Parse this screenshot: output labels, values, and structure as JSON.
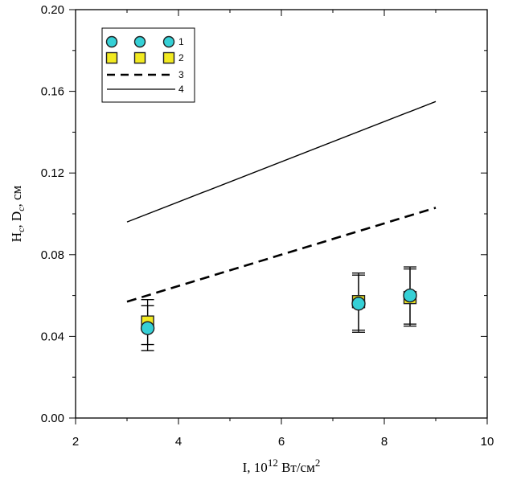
{
  "chart_data": {
    "type": "scatter",
    "title": "",
    "xlabel": {
      "base": "I, 10",
      "sup1": "12",
      "mid": " Вт/см",
      "sup2": "2"
    },
    "ylabel": {
      "h": "H",
      "hsub": "c",
      "sep": ", D",
      "dsub": "c",
      "unit": ", см"
    },
    "xlim": [
      2,
      10
    ],
    "ylim": [
      0.0,
      0.2
    ],
    "x_ticks": [
      "2",
      "4",
      "6",
      "8",
      "10"
    ],
    "y_ticks": [
      "0.00",
      "0.04",
      "0.08",
      "0.12",
      "0.16",
      "0.20"
    ],
    "grid": false,
    "legend_position": "top-left",
    "series": [
      {
        "name": "1",
        "kind": "markers",
        "marker": "circle",
        "color": "#35d0d6",
        "points": [
          {
            "x": 3.4,
            "y": 0.044,
            "err": 0.011
          },
          {
            "x": 7.5,
            "y": 0.056,
            "err": 0.014
          },
          {
            "x": 8.5,
            "y": 0.06,
            "err": 0.014
          }
        ]
      },
      {
        "name": "2",
        "kind": "markers",
        "marker": "square",
        "color": "#f2ea21",
        "points": [
          {
            "x": 3.4,
            "y": 0.047,
            "err": 0.011
          },
          {
            "x": 7.5,
            "y": 0.057,
            "err": 0.014
          },
          {
            "x": 8.5,
            "y": 0.059,
            "err": 0.014
          }
        ]
      },
      {
        "name": "3",
        "kind": "line",
        "style": "dashed",
        "color": "#000000",
        "points": [
          {
            "x": 3.0,
            "y": 0.057
          },
          {
            "x": 9.0,
            "y": 0.103
          }
        ]
      },
      {
        "name": "4",
        "kind": "line",
        "style": "solid",
        "color": "#000000",
        "points": [
          {
            "x": 3.0,
            "y": 0.096
          },
          {
            "x": 9.0,
            "y": 0.155
          }
        ]
      }
    ]
  }
}
